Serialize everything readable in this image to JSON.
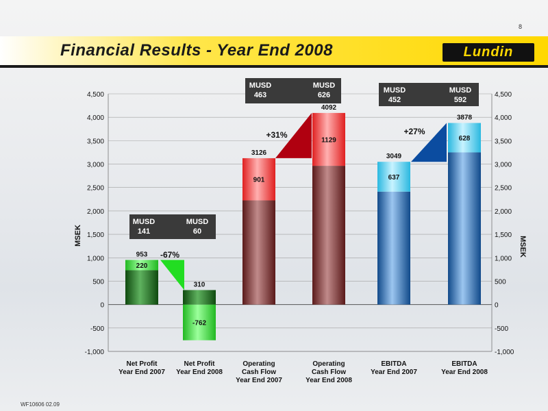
{
  "page": {
    "page_number": "8",
    "title": "Financial Results -  Year End 2008",
    "logo_text": "Lundin",
    "footer": "WF10606 02.09"
  },
  "chart_data": {
    "type": "bar",
    "ylabel_left": "MSEK",
    "ylabel_right": "MSEK",
    "ylim": [
      -1000,
      4500
    ],
    "yticks": [
      "4,500",
      "4,000",
      "3,500",
      "3,000",
      "2,500",
      "2,000",
      "1,500",
      "1,000",
      "500",
      "0",
      "-500",
      "-1,000"
    ],
    "ytick_values": [
      4500,
      4000,
      3500,
      3000,
      2500,
      2000,
      1500,
      1000,
      500,
      0,
      -500,
      -1000
    ],
    "categories": [
      [
        "Net Profit",
        "Year End 2007"
      ],
      [
        "Net Profit",
        "Year End 2008"
      ],
      [
        "Operating",
        "Cash Flow",
        "Year End 2007"
      ],
      [
        "Operating",
        "Cash Flow",
        "Year End 2008"
      ],
      [
        "EBITDA",
        "Year End 2007"
      ],
      [
        "EBITDA",
        "Year End 2008"
      ]
    ],
    "bars": [
      {
        "total": 953,
        "q4": 220,
        "q4_signed": 220,
        "total_label": "953",
        "q4_label": "220",
        "color": "green"
      },
      {
        "total": 310,
        "q4": 762,
        "q4_signed": -762,
        "total_label": "310",
        "q4_label": "-762",
        "color": "green"
      },
      {
        "total": 3126,
        "q4": 901,
        "q4_signed": 901,
        "total_label": "3126",
        "q4_label": "901",
        "color": "red"
      },
      {
        "total": 4092,
        "q4": 1129,
        "q4_signed": 1129,
        "total_label": "4092",
        "q4_label": "1129",
        "color": "red"
      },
      {
        "total": 3049,
        "q4": 637,
        "q4_signed": 637,
        "total_label": "3049",
        "q4_label": "637",
        "color": "blue"
      },
      {
        "total": 3878,
        "q4": 628,
        "q4_signed": 628,
        "total_label": "3878",
        "q4_label": "628",
        "color": "blue"
      }
    ],
    "usd_boxes": [
      {
        "label_a": "MUSD",
        "value_a": "141",
        "label_b": "MUSD",
        "value_b": "60"
      },
      {
        "label_a": "MUSD",
        "value_a": "463",
        "label_b": "MUSD",
        "value_b": "626"
      },
      {
        "label_a": "MUSD",
        "value_a": "452",
        "label_b": "MUSD",
        "value_b": "592"
      }
    ],
    "changes": [
      "-67%",
      "+31%",
      "+27%"
    ],
    "colors": {
      "green_dark": "#1f6b1f",
      "green_light": "#33dd33",
      "red_dark": "#7a2a2a",
      "red_light": "#ff4444",
      "red_arrow": "#b00010",
      "blue_dark": "#1b5ea8",
      "blue_light": "#55d5f2",
      "blue_arrow": "#0b4ca0"
    }
  }
}
